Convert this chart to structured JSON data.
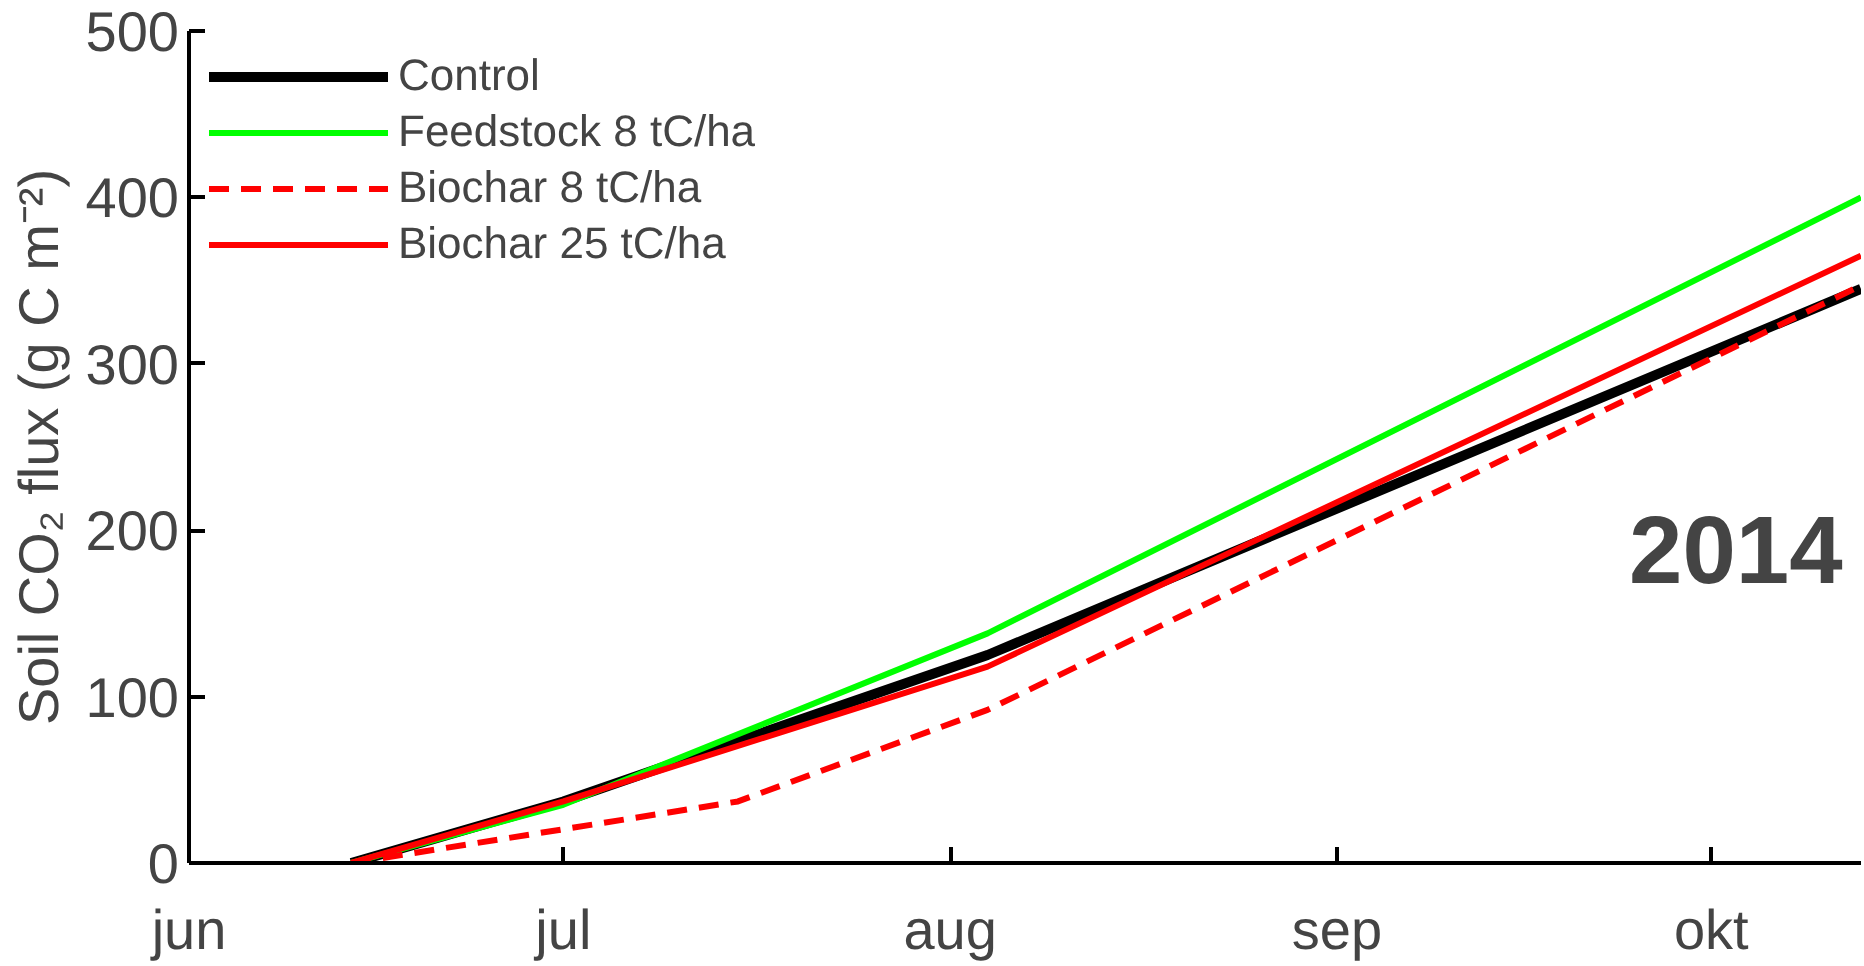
{
  "chart_data": {
    "type": "line",
    "ylabel": "Soil CO₂ flux (g C m⁻²)",
    "annotations": [
      "2014"
    ],
    "xlim": [
      "2014-06-01",
      "2014-10-13"
    ],
    "xticks": [
      {
        "value": "2014-06-01",
        "label": "jun"
      },
      {
        "value": "2014-07-01",
        "label": "jul"
      },
      {
        "value": "2014-08-01",
        "label": "aug"
      },
      {
        "value": "2014-09-01",
        "label": "sep"
      },
      {
        "value": "2014-10-01",
        "label": "okt"
      }
    ],
    "ylim": [
      0,
      500
    ],
    "yticks": [
      0,
      100,
      200,
      300,
      400,
      500
    ],
    "grid": false,
    "legend": "top left",
    "marker": "none",
    "x": [
      "2014-06-14",
      "2014-07-01",
      "2014-08-04",
      "2014-10-13"
    ],
    "series": [
      {
        "name": "Control",
        "color": "#000000",
        "values": [
          0,
          37,
          125,
          345
        ]
      },
      {
        "name": "Feedstock 8 tC/ha",
        "color": "#00ff00",
        "values": [
          0,
          35,
          138,
          400
        ]
      },
      {
        "name": "Biochar 8 tC/ha",
        "color": "#ff0000",
        "line_style": "dashed",
        "x": [
          "2014-06-14",
          "2014-07-15",
          "2014-08-04",
          "2014-10-13"
        ],
        "values": [
          0,
          37,
          92,
          347
        ]
      },
      {
        "name": "Biochar 25 tC/ha",
        "color": "#ff0000",
        "values": [
          0,
          37,
          118,
          365
        ]
      }
    ]
  }
}
